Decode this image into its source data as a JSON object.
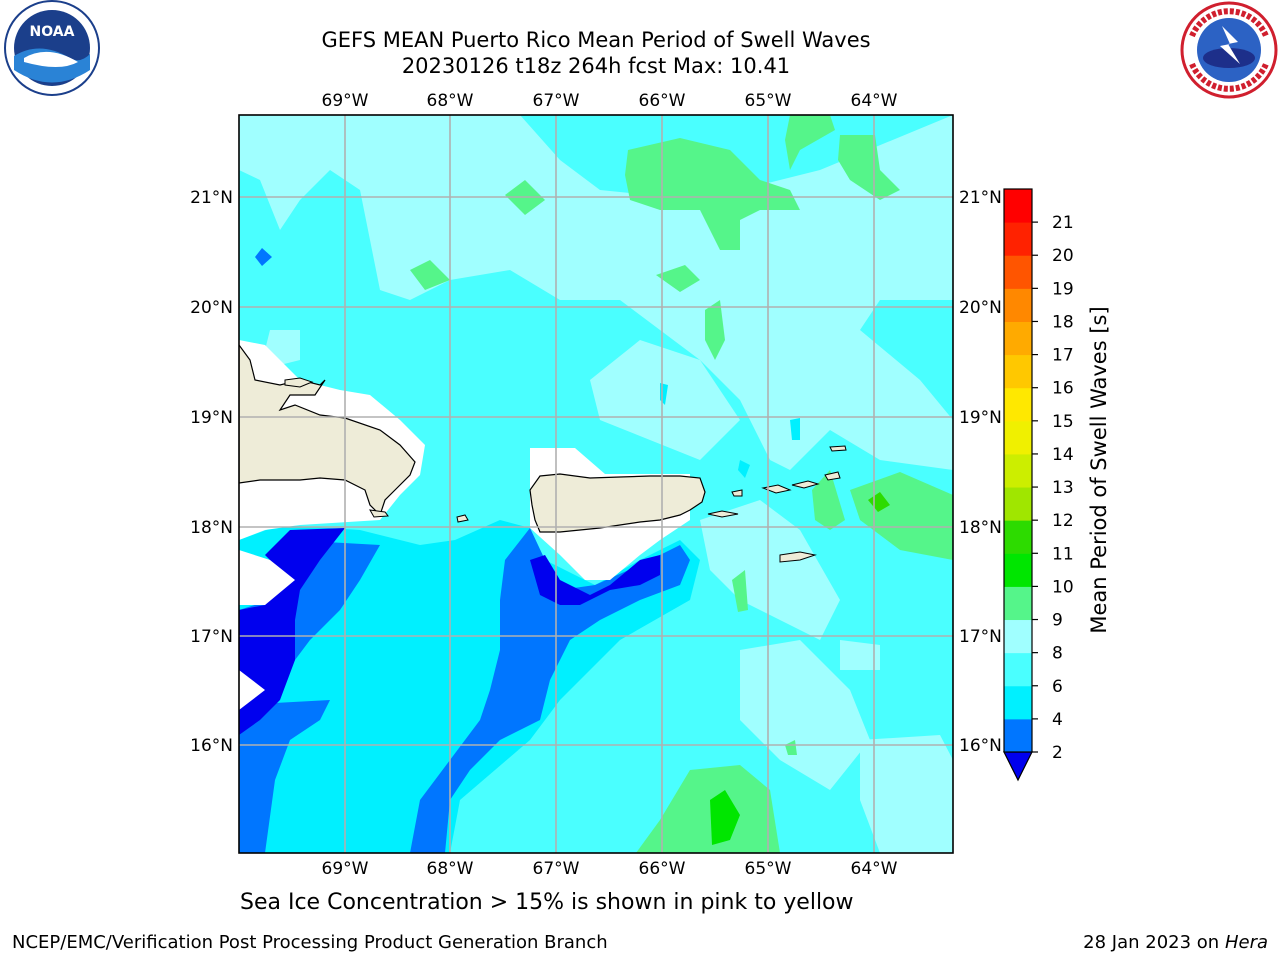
{
  "header": {
    "title_line1": "GEFS MEAN Puerto Rico Mean Period of Swell Waves",
    "title_line2": "20230126 t18z 264h fcst   Max: 10.41"
  },
  "logos": {
    "left": "noaa-logo",
    "right": "national-weather-service-logo",
    "left_text": "NOAA",
    "right_text": "NATIONAL WEATHER SERVICE"
  },
  "map": {
    "projection": "lon-lat",
    "lon_range": [
      -70.0,
      -63.25
    ],
    "lat_range": [
      15.0,
      21.75
    ],
    "lon_ticks": [
      "69°W",
      "68°W",
      "67°W",
      "66°W",
      "65°W",
      "64°W"
    ],
    "lat_ticks": [
      "21°N",
      "20°N",
      "19°N",
      "18°N",
      "17°N",
      "16°N"
    ],
    "gridlines": true,
    "land_color": "#eeecd8",
    "no_data_color": "#ffffff",
    "regions": [
      "Hispaniola",
      "Puerto Rico",
      "Virgin Islands"
    ]
  },
  "colorbar": {
    "label": "Mean Period of Swell Waves [s]",
    "tick_labels": [
      "2",
      "4",
      "6",
      "8",
      "9",
      "10",
      "11",
      "12",
      "13",
      "14",
      "15",
      "16",
      "17",
      "18",
      "19",
      "20",
      "21"
    ],
    "colors": [
      "#0000ee",
      "#0076ff",
      "#00f0ff",
      "#4affff",
      "#a0ffff",
      "#55f58a",
      "#00e600",
      "#2ddb00",
      "#a0e600",
      "#ccee00",
      "#f0f000",
      "#ffe800",
      "#ffc800",
      "#ffaa00",
      "#ff8800",
      "#ff5500",
      "#ff2200",
      "#ff0000"
    ],
    "extend": "min"
  },
  "caption": "Sea Ice Concentration > 15% is shown in pink to yellow",
  "footer": {
    "left": "NCEP/EMC/Verification Post Processing Product Generation Branch",
    "date": "28 Jan 2023 on",
    "machine": "Hera"
  }
}
